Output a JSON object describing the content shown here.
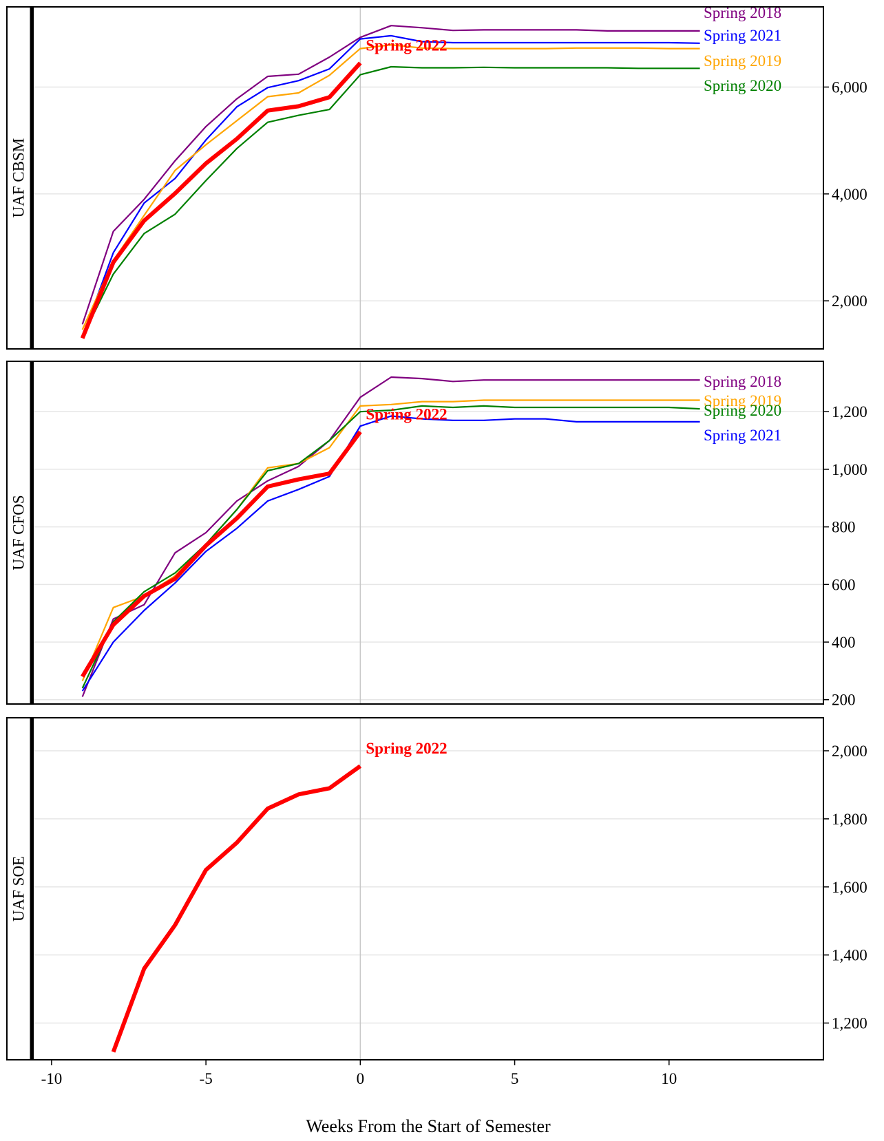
{
  "chart_data": {
    "type": "line",
    "xlabel": "Weeks From the Start of Semester",
    "x_ticks": [
      -10,
      -5,
      0,
      5,
      10
    ],
    "xlim": [
      -10.6,
      15.0
    ],
    "reference_x": 0,
    "colors": {
      "Spring 2018": "#800080",
      "Spring 2019": "#FFA500",
      "Spring 2020": "#008000",
      "Spring 2021": "#0000FF",
      "Spring 2022": "#FF0000"
    },
    "panels": [
      {
        "strip": "UAF CBSM",
        "ylim": [
          1100,
          7500
        ],
        "y_ticks": [
          2000,
          4000,
          6000
        ],
        "y_tick_labels": [
          "2,000",
          "4,000",
          "6,000"
        ],
        "series": [
          {
            "name": "Spring 2018",
            "label_text": "Spring 2018",
            "x": [
              -9,
              -8,
              -7,
              -6,
              -5,
              -4,
              -3,
              -2,
              -1,
              0,
              1,
              2,
              3,
              4,
              5,
              6,
              7,
              8,
              9,
              10,
              11
            ],
            "y": [
              1560,
              3300,
              3900,
              4620,
              5260,
              5780,
              6200,
              6240,
              6560,
              6930,
              7150,
              7110,
              7060,
              7070,
              7070,
              7070,
              7070,
              7050,
              7050,
              7050,
              7050
            ]
          },
          {
            "name": "Spring 2021",
            "label_text": "Spring 2021",
            "x": [
              -9,
              -8,
              -7,
              -6,
              -5,
              -4,
              -3,
              -2,
              -1,
              0,
              1,
              2,
              3,
              4,
              5,
              6,
              7,
              8,
              9,
              10,
              11
            ],
            "y": [
              1330,
              2900,
              3830,
              4290,
              5010,
              5630,
              5990,
              6120,
              6340,
              6900,
              6960,
              6850,
              6830,
              6830,
              6830,
              6830,
              6830,
              6830,
              6830,
              6830,
              6820
            ]
          },
          {
            "name": "Spring 2019",
            "label_text": "Spring 2019",
            "x": [
              -9,
              -8,
              -7,
              -6,
              -5,
              -4,
              -3,
              -2,
              -1,
              0,
              1,
              2,
              3,
              4,
              5,
              6,
              7,
              8,
              9,
              10,
              11
            ],
            "y": [
              1460,
              2750,
              3600,
              4440,
              4920,
              5370,
              5820,
              5890,
              6220,
              6720,
              6790,
              6730,
              6720,
              6720,
              6720,
              6720,
              6730,
              6730,
              6730,
              6720,
              6720
            ]
          },
          {
            "name": "Spring 2020",
            "label_text": "Spring 2020",
            "x": [
              -9,
              -8,
              -7,
              -6,
              -5,
              -4,
              -3,
              -2,
              -1,
              0,
              1,
              2,
              3,
              4,
              5,
              6,
              7,
              8,
              9,
              10,
              11
            ],
            "y": [
              1330,
              2500,
              3260,
              3620,
              4250,
              4850,
              5340,
              5470,
              5580,
              6230,
              6380,
              6360,
              6360,
              6370,
              6360,
              6360,
              6360,
              6360,
              6350,
              6350,
              6350
            ]
          },
          {
            "name": "Spring 2022",
            "label_text": "Spring 2022",
            "x": [
              -9,
              -8,
              -7,
              -6,
              -5,
              -4,
              -3,
              -2,
              -1,
              0
            ],
            "y": [
              1300,
              2720,
              3500,
              4010,
              4570,
              5030,
              5560,
              5640,
              5810,
              6450
            ]
          }
        ]
      },
      {
        "strip": "UAF CFOS",
        "ylim": [
          185,
          1375
        ],
        "y_ticks": [
          200,
          400,
          600,
          800,
          1000,
          1200
        ],
        "y_tick_labels": [
          "200",
          "400",
          "600",
          "800",
          "1,000",
          "1,200"
        ],
        "series": [
          {
            "name": "Spring 2018",
            "label_text": "Spring 2018",
            "x": [
              -9,
              -8,
              -7,
              -6,
              -5,
              -4,
              -3,
              -2,
              -1,
              0,
              1,
              2,
              3,
              4,
              5,
              6,
              7,
              8,
              9,
              10,
              11
            ],
            "y": [
              210,
              480,
              530,
              710,
              780,
              890,
              960,
              1010,
              1100,
              1250,
              1320,
              1315,
              1305,
              1310,
              1310,
              1310,
              1310,
              1310,
              1310,
              1310,
              1310
            ]
          },
          {
            "name": "Spring 2019",
            "label_text": "Spring 2019",
            "x": [
              -9,
              -8,
              -7,
              -6,
              -5,
              -4,
              -3,
              -2,
              -1,
              0,
              1,
              2,
              3,
              4,
              5,
              6,
              7,
              8,
              9,
              10,
              11
            ],
            "y": [
              265,
              520,
              560,
              630,
              740,
              860,
              1005,
              1020,
              1075,
              1220,
              1225,
              1235,
              1235,
              1240,
              1240,
              1240,
              1240,
              1240,
              1240,
              1240,
              1240
            ]
          },
          {
            "name": "Spring 2020",
            "label_text": "Spring 2020",
            "x": [
              -9,
              -8,
              -7,
              -6,
              -5,
              -4,
              -3,
              -2,
              -1,
              0,
              1,
              2,
              3,
              4,
              5,
              6,
              7,
              8,
              9,
              10,
              11
            ],
            "y": [
              240,
              470,
              575,
              640,
              740,
              860,
              995,
              1020,
              1100,
              1200,
              1205,
              1220,
              1215,
              1220,
              1215,
              1215,
              1215,
              1215,
              1215,
              1215,
              1210
            ]
          },
          {
            "name": "Spring 2021",
            "label_text": "Spring 2021",
            "x": [
              -9,
              -8,
              -7,
              -6,
              -5,
              -4,
              -3,
              -2,
              -1,
              0,
              1,
              2,
              3,
              4,
              5,
              6,
              7,
              8,
              9,
              10,
              11
            ],
            "y": [
              230,
              400,
              510,
              605,
              715,
              795,
              890,
              930,
              975,
              1150,
              1185,
              1175,
              1170,
              1170,
              1175,
              1175,
              1165,
              1165,
              1165,
              1165,
              1165
            ]
          },
          {
            "name": "Spring 2022",
            "label_text": "Spring 2022",
            "x": [
              -9,
              -8,
              -7,
              -6,
              -5,
              -4,
              -3,
              -2,
              -1,
              0
            ],
            "y": [
              280,
              460,
              560,
              620,
              735,
              830,
              940,
              965,
              985,
              1130
            ]
          }
        ]
      },
      {
        "strip": "UAF SOE",
        "ylim": [
          1092,
          2097
        ],
        "y_ticks": [
          1200,
          1400,
          1600,
          1800,
          2000
        ],
        "y_tick_labels": [
          "1,200",
          "1,400",
          "1,600",
          "1,800",
          "2,000"
        ],
        "series": [
          {
            "name": "Spring 2022",
            "label_text": "Spring 2022",
            "x": [
              -8,
              -7,
              -6,
              -5,
              -4,
              -3,
              -2,
              -1,
              0
            ],
            "y": [
              1115,
              1360,
              1488,
              1650,
              1730,
              1830,
              1872,
              1890,
              1955
            ]
          }
        ]
      }
    ]
  }
}
